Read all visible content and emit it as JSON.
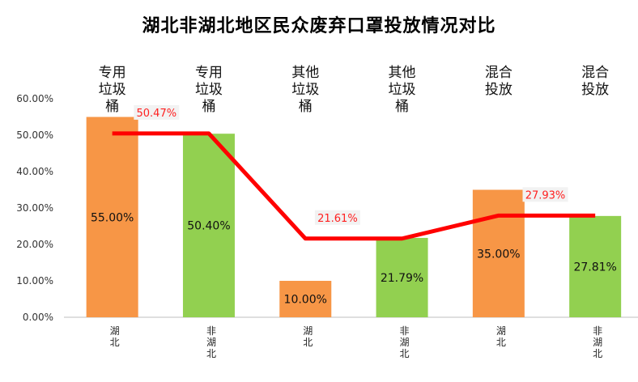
{
  "title": "湖北非湖北地区民众废弃口罩投放情况对比",
  "chart_data": {
    "type": "bar",
    "title": "湖北非湖北地区民众废弃口罩投放情况对比",
    "categories": [
      "湖北",
      "非湖北",
      "湖北",
      "非湖北",
      "湖北",
      "非湖北"
    ],
    "groups": [
      {
        "label": "专用垃圾桶",
        "categories": [
          "湖北",
          "非湖北"
        ]
      },
      {
        "label": "其他垃圾桶",
        "categories": [
          "湖北",
          "非湖北"
        ]
      },
      {
        "label": "混合投放",
        "categories": [
          "湖北",
          "非湖北"
        ]
      }
    ],
    "series": [
      {
        "type": "bar",
        "values": [
          55.0,
          50.4,
          10.0,
          21.79,
          35.0,
          27.81
        ],
        "labels": [
          "55.00%",
          "50.40%",
          "10.00%",
          "21.79%",
          "35.00%",
          "27.81%"
        ],
        "colors": [
          "#f79646",
          "#92d050",
          "#f79646",
          "#92d050",
          "#f79646",
          "#92d050"
        ]
      },
      {
        "type": "line",
        "values": [
          50.47,
          50.47,
          21.61,
          21.61,
          27.93,
          27.93
        ],
        "labels": [
          "50.47%",
          "21.61%",
          "27.93%"
        ],
        "color": "#ff0000"
      }
    ],
    "y_ticks": [
      "0.00%",
      "10.00%",
      "20.00%",
      "30.00%",
      "40.00%",
      "50.00%",
      "60.00%"
    ],
    "ylim": [
      0,
      60
    ],
    "grid": false,
    "legend": "none"
  }
}
